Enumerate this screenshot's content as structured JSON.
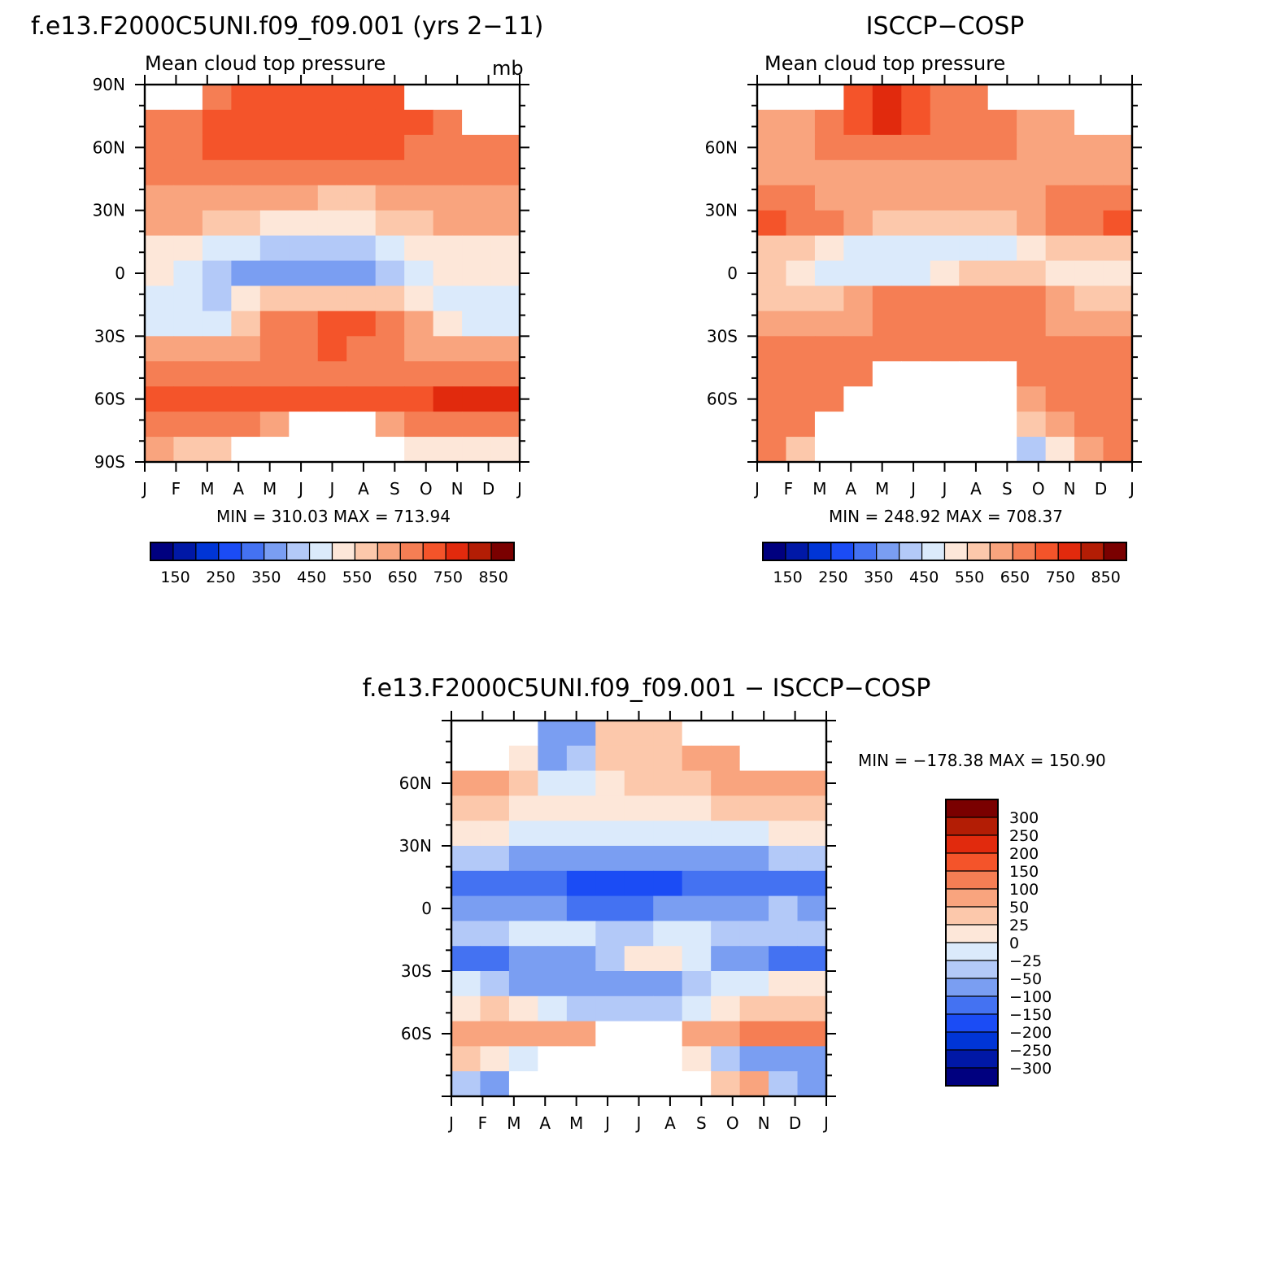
{
  "colors": {
    "abs_palette": [
      "#00007f",
      "#0018a6",
      "#0035d6",
      "#1b4cf5",
      "#4472f2",
      "#7a9ef2",
      "#b3c9f8",
      "#dbeafb",
      "#fde7d9",
      "#fcc8ab",
      "#f9a47e",
      "#f57e54",
      "#f4542a",
      "#e12a0d",
      "#b31d05",
      "#7a0000"
    ],
    "diff_palette": [
      "#00007f",
      "#0018a6",
      "#0035d6",
      "#1b4cf5",
      "#4472f2",
      "#7a9ef2",
      "#b3c9f8",
      "#dbeafb",
      "#fde7d9",
      "#fcc8ab",
      "#f9a47e",
      "#f57e54",
      "#f4542a",
      "#e12a0d",
      "#b31d05",
      "#7a0000"
    ]
  },
  "panels": {
    "model": {
      "title": "f.e13.F2000C5UNI.f09_f09.001 (yrs 2−11)",
      "subtitle": "Mean cloud top pressure",
      "units": "mb",
      "stats": "MIN = 310.03 MAX = 713.94"
    },
    "obs": {
      "title": "ISCCP−COSP",
      "subtitle": "Mean cloud top pressure",
      "stats": "MIN = 248.92 MAX = 708.37"
    },
    "diff": {
      "title": "f.e13.F2000C5UNI.f09_f09.001 − ISCCP−COSP",
      "stats": "MIN = −178.38 MAX = 150.90"
    }
  },
  "chart_data": [
    {
      "type": "heatmap",
      "title": "f.e13.F2000C5UNI.f09_f09.001 (yrs 2−11)",
      "subtitle": "Mean cloud top pressure",
      "units": "mb",
      "x": [
        "J",
        "F",
        "M",
        "A",
        "M",
        "J",
        "J",
        "A",
        "S",
        "O",
        "N",
        "D",
        "J"
      ],
      "y_ticks": [
        "90N",
        "60N",
        "30N",
        "0",
        "30S",
        "60S",
        "90S"
      ],
      "ylim": [
        -90,
        90
      ],
      "colorbar_labels": [
        "150",
        "250",
        "350",
        "450",
        "550",
        "650",
        "750",
        "850"
      ],
      "levels": [
        100,
        150,
        200,
        250,
        300,
        350,
        400,
        450,
        500,
        550,
        600,
        650,
        700,
        750,
        800,
        850
      ],
      "min": 310.03,
      "max": 713.94,
      "field": [
        [
          null,
          null,
          640,
          680,
          690,
          690,
          690,
          690,
          690,
          null,
          null,
          null,
          null
        ],
        [
          600,
          620,
          650,
          680,
          690,
          690,
          690,
          690,
          670,
          650,
          620,
          null,
          null
        ],
        [
          630,
          640,
          650,
          660,
          665,
          665,
          665,
          660,
          650,
          640,
          630,
          625,
          630
        ],
        [
          600,
          610,
          610,
          610,
          605,
          600,
          600,
          600,
          600,
          600,
          600,
          600,
          600
        ],
        [
          570,
          570,
          560,
          555,
          550,
          550,
          545,
          545,
          550,
          555,
          560,
          565,
          570
        ],
        [
          560,
          550,
          525,
          500,
          490,
          480,
          480,
          480,
          500,
          530,
          550,
          560,
          560
        ],
        [
          480,
          470,
          440,
          400,
          380,
          360,
          360,
          370,
          420,
          460,
          480,
          480,
          480
        ],
        [
          450,
          430,
          360,
          340,
          320,
          310,
          310,
          320,
          360,
          430,
          460,
          450,
          450
        ],
        [
          420,
          400,
          380,
          450,
          500,
          520,
          520,
          520,
          520,
          480,
          440,
          420,
          420
        ],
        [
          410,
          400,
          430,
          530,
          600,
          640,
          660,
          650,
          620,
          560,
          470,
          420,
          410
        ],
        [
          550,
          550,
          560,
          580,
          610,
          630,
          650,
          640,
          620,
          590,
          560,
          550,
          550
        ],
        [
          630,
          630,
          630,
          630,
          630,
          630,
          630,
          630,
          630,
          630,
          630,
          630,
          630
        ],
        [
          680,
          690,
          690,
          690,
          680,
          670,
          670,
          670,
          680,
          690,
          700,
          710,
          700
        ],
        [
          630,
          630,
          620,
          600,
          590,
          null,
          null,
          null,
          590,
          610,
          620,
          630,
          630
        ],
        [
          560,
          540,
          500,
          null,
          null,
          null,
          null,
          null,
          null,
          480,
          480,
          460,
          450
        ]
      ]
    },
    {
      "type": "heatmap",
      "title": "ISCCP−COSP",
      "subtitle": "Mean cloud top pressure",
      "x": [
        "J",
        "F",
        "M",
        "A",
        "M",
        "J",
        "J",
        "A",
        "S",
        "O",
        "N",
        "D",
        "J"
      ],
      "y_ticks": [
        "60N",
        "30N",
        "0",
        "30S",
        "60S"
      ],
      "ylim": [
        -90,
        90
      ],
      "colorbar_labels": [
        "150",
        "250",
        "350",
        "450",
        "550",
        "650",
        "750",
        "850"
      ],
      "levels": [
        100,
        150,
        200,
        250,
        300,
        350,
        400,
        450,
        500,
        550,
        600,
        650,
        700,
        750,
        800,
        850
      ],
      "min": 248.92,
      "max": 708.37,
      "field": [
        [
          null,
          null,
          null,
          660,
          700,
          690,
          640,
          640,
          null,
          null,
          null,
          null,
          null
        ],
        [
          560,
          580,
          640,
          670,
          700,
          690,
          640,
          620,
          610,
          590,
          570,
          null,
          null
        ],
        [
          580,
          590,
          600,
          610,
          620,
          610,
          600,
          600,
          600,
          590,
          580,
          570,
          570
        ],
        [
          560,
          560,
          580,
          590,
          590,
          590,
          580,
          580,
          570,
          570,
          560,
          560,
          560
        ],
        [
          600,
          600,
          580,
          570,
          560,
          550,
          550,
          560,
          560,
          570,
          600,
          610,
          610
        ],
        [
          650,
          640,
          600,
          560,
          520,
          500,
          500,
          510,
          530,
          560,
          600,
          640,
          650
        ],
        [
          520,
          510,
          470,
          430,
          410,
          400,
          400,
          410,
          430,
          470,
          510,
          520,
          510
        ],
        [
          500,
          470,
          420,
          410,
          420,
          440,
          470,
          500,
          520,
          520,
          490,
          450,
          450
        ],
        [
          520,
          520,
          530,
          560,
          600,
          620,
          640,
          640,
          630,
          600,
          570,
          540,
          520
        ],
        [
          560,
          560,
          570,
          590,
          610,
          620,
          630,
          630,
          620,
          610,
          590,
          570,
          560
        ],
        [
          620,
          620,
          620,
          620,
          620,
          620,
          630,
          630,
          630,
          620,
          620,
          620,
          620
        ],
        [
          630,
          630,
          620,
          610,
          null,
          null,
          null,
          null,
          null,
          610,
          620,
          630,
          630
        ],
        [
          630,
          630,
          610,
          null,
          null,
          null,
          null,
          null,
          null,
          580,
          600,
          620,
          630
        ],
        [
          610,
          600,
          null,
          null,
          null,
          null,
          null,
          null,
          null,
          520,
          560,
          600,
          610
        ],
        [
          600,
          520,
          null,
          null,
          null,
          null,
          null,
          null,
          null,
          380,
          480,
          580,
          600
        ]
      ]
    },
    {
      "type": "heatmap",
      "title": "f.e13.F2000C5UNI.f09_f09.001 − ISCCP−COSP",
      "x": [
        "J",
        "F",
        "M",
        "A",
        "M",
        "J",
        "J",
        "A",
        "S",
        "O",
        "N",
        "D",
        "J"
      ],
      "y_ticks": [
        "60N",
        "30N",
        "0",
        "30S",
        "60S"
      ],
      "ylim": [
        -90,
        90
      ],
      "colorbar_labels": [
        "300",
        "250",
        "200",
        "150",
        "100",
        "50",
        "25",
        "0",
        "−25",
        "−50",
        "−100",
        "−150",
        "−200",
        "−250",
        "−300"
      ],
      "levels": [
        -300,
        -250,
        -200,
        -150,
        -100,
        -50,
        -25,
        0,
        25,
        50,
        100,
        150,
        200,
        250,
        300
      ],
      "min": -178.38,
      "max": 150.9,
      "field": [
        [
          null,
          null,
          null,
          -90,
          -90,
          40,
          40,
          40,
          null,
          null,
          null,
          null,
          null
        ],
        [
          null,
          null,
          20,
          -60,
          -40,
          40,
          40,
          40,
          60,
          80,
          null,
          null,
          null
        ],
        [
          60,
          50,
          30,
          -20,
          -10,
          20,
          30,
          30,
          40,
          60,
          60,
          50,
          60
        ],
        [
          40,
          30,
          20,
          10,
          5,
          10,
          20,
          20,
          20,
          30,
          40,
          40,
          40
        ],
        [
          10,
          5,
          -10,
          -20,
          -20,
          -20,
          -20,
          -20,
          -20,
          -10,
          -5,
          5,
          10
        ],
        [
          -30,
          -40,
          -60,
          -80,
          -80,
          -80,
          -80,
          -80,
          -80,
          -70,
          -60,
          -40,
          -30
        ],
        [
          -110,
          -120,
          -140,
          -150,
          -160,
          -160,
          -160,
          -160,
          -150,
          -140,
          -120,
          -110,
          -110
        ],
        [
          -60,
          -60,
          -80,
          -90,
          -110,
          -120,
          -110,
          -100,
          -90,
          -80,
          -60,
          -50,
          -60
        ],
        [
          -40,
          -30,
          -20,
          -20,
          -10,
          -30,
          -30,
          -20,
          -20,
          -30,
          -30,
          -40,
          -40
        ],
        [
          -120,
          -110,
          -100,
          -80,
          -60,
          -40,
          10,
          20,
          -20,
          -60,
          -100,
          -120,
          -120
        ],
        [
          -20,
          -40,
          -60,
          -60,
          -60,
          -70,
          -70,
          -60,
          -40,
          -20,
          -10,
          0,
          10
        ],
        [
          20,
          30,
          20,
          -10,
          -30,
          -40,
          -40,
          -30,
          -10,
          10,
          30,
          40,
          30
        ],
        [
          80,
          80,
          80,
          70,
          60,
          null,
          null,
          null,
          70,
          90,
          100,
          110,
          110
        ],
        [
          30,
          0,
          -20,
          null,
          null,
          null,
          null,
          null,
          10,
          -40,
          -60,
          -60,
          -60
        ],
        [
          -40,
          -60,
          null,
          null,
          null,
          null,
          null,
          null,
          null,
          40,
          60,
          -40,
          -60
        ]
      ]
    }
  ]
}
